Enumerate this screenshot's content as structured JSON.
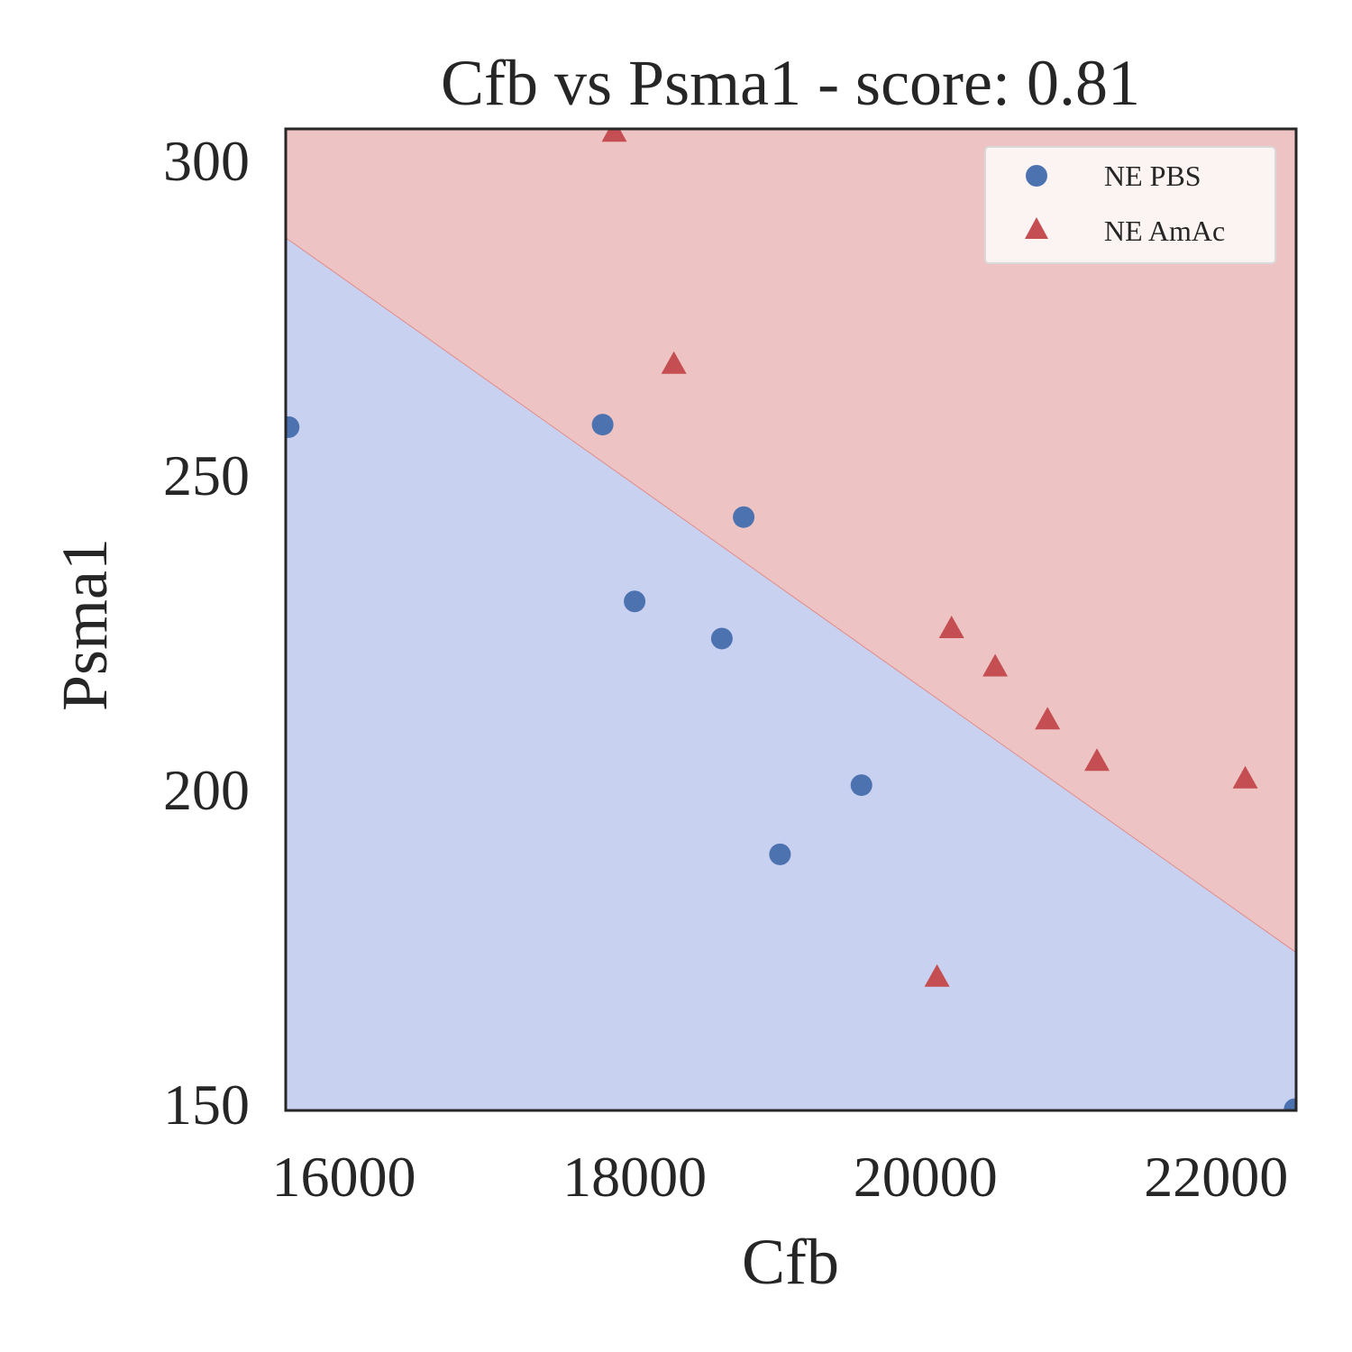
{
  "chart_data": {
    "type": "scatter",
    "title": "Cfb vs Psma1 - score: 0.81",
    "xlabel": "Cfb",
    "ylabel": "Psma1",
    "xlim": [
      15600,
      22550
    ],
    "ylim": [
      149,
      305
    ],
    "xticks": [
      16000,
      18000,
      20000,
      22000
    ],
    "yticks": [
      150,
      200,
      250,
      300
    ],
    "xtick_labels": [
      "16000",
      "18000",
      "20000",
      "22000"
    ],
    "ytick_labels": [
      "150",
      "200",
      "250",
      "300"
    ],
    "grid": false,
    "legend": {
      "position": "top-right"
    },
    "decision_boundary": {
      "line": [
        [
          15600,
          287.7
        ],
        [
          22550,
          174.1
        ]
      ],
      "below_class": "NE PBS",
      "above_class": "NE AmAc",
      "below_color": "#c9d1f1",
      "above_color": "#edc4c3",
      "line_color": "#e08c88"
    },
    "series": [
      {
        "name": "NE PBS",
        "marker": "circle",
        "color": "#4c72b0",
        "points": [
          [
            15620,
            257.6
          ],
          [
            17780,
            258.0
          ],
          [
            18000,
            229.9
          ],
          [
            18600,
            224.0
          ],
          [
            18750,
            243.3
          ],
          [
            19000,
            189.7
          ],
          [
            19560,
            200.7
          ],
          [
            22540,
            149.2
          ]
        ]
      },
      {
        "name": "NE AmAc",
        "marker": "triangle",
        "color": "#c44e52",
        "points": [
          [
            17860,
            304.4
          ],
          [
            18270,
            267.5
          ],
          [
            20080,
            170.1
          ],
          [
            20180,
            225.5
          ],
          [
            20480,
            219.4
          ],
          [
            20840,
            211.0
          ],
          [
            21180,
            204.4
          ],
          [
            22200,
            201.6
          ]
        ]
      }
    ]
  }
}
